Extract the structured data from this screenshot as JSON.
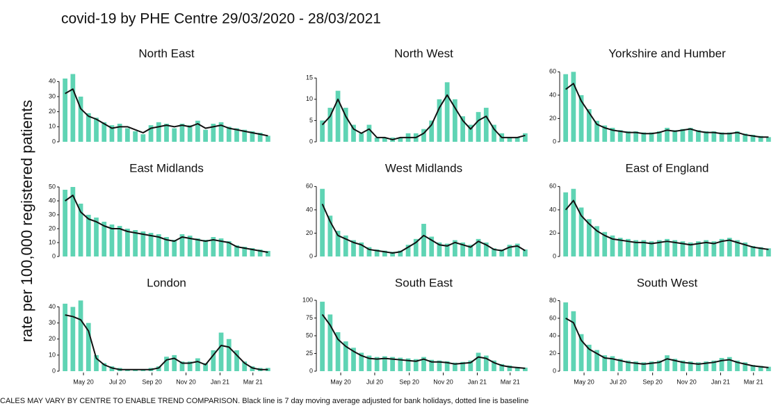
{
  "title": "covid-19 by PHE Centre 29/03/2020 - 28/03/2021",
  "y_label": "rate per 100,000 registered patients",
  "note": "CALES MAY VARY BY CENTRE TO ENABLE TREND COMPARISON. Black line is 7 day moving average adjusted for bank holidays, dotted line is baseline",
  "chart_data": [
    {
      "type": "bar",
      "title": "North East",
      "x": [
        0,
        14,
        28,
        42,
        56,
        70,
        84,
        98,
        112,
        126,
        140,
        154,
        168,
        182,
        196,
        210,
        224,
        238,
        252,
        266,
        280,
        294,
        308,
        322,
        336,
        350,
        364
      ],
      "xlim": [
        -7,
        371
      ],
      "ylim": [
        0,
        48
      ],
      "yticks": [
        0,
        10,
        20,
        30,
        40
      ],
      "series": [
        {
          "type": "bar",
          "color": "#5fd4b4",
          "values": [
            42,
            45,
            30,
            19,
            16,
            13,
            11,
            12,
            9,
            7,
            5,
            11,
            13,
            12,
            9,
            12,
            11,
            14,
            8,
            12,
            13,
            10,
            9,
            8,
            7,
            6,
            4
          ]
        },
        {
          "type": "line",
          "color": "#111111",
          "values": [
            32,
            35,
            22,
            17,
            15,
            12,
            9,
            10,
            10,
            8,
            6,
            9,
            10,
            11,
            10,
            11,
            10,
            12,
            9,
            10,
            11,
            9,
            8,
            7,
            6,
            5,
            4
          ]
        }
      ]
    },
    {
      "type": "bar",
      "title": "North West",
      "x": [
        0,
        14,
        28,
        42,
        56,
        70,
        84,
        98,
        112,
        126,
        140,
        154,
        168,
        182,
        196,
        210,
        224,
        238,
        252,
        266,
        280,
        294,
        308,
        322,
        336,
        350,
        364
      ],
      "xlim": [
        -7,
        371
      ],
      "ylim": [
        0,
        17
      ],
      "yticks": [
        0,
        5,
        10,
        15
      ],
      "series": [
        {
          "type": "bar",
          "color": "#5fd4b4",
          "values": [
            5,
            8,
            12,
            8,
            4,
            2,
            4,
            1,
            1,
            1,
            1,
            2,
            2,
            3,
            5,
            10,
            14,
            10,
            6,
            4,
            7,
            8,
            4,
            2,
            1,
            1,
            2
          ]
        },
        {
          "type": "line",
          "color": "#111111",
          "values": [
            4,
            6,
            10,
            6,
            3,
            2,
            3,
            1,
            1,
            0.5,
            1,
            1,
            1,
            2,
            4,
            8,
            11,
            8,
            5,
            3,
            5,
            6,
            3,
            1,
            1,
            1,
            1.5
          ]
        }
      ]
    },
    {
      "type": "bar",
      "title": "Yorkshire and Humber",
      "x": [
        0,
        14,
        28,
        42,
        56,
        70,
        84,
        98,
        112,
        126,
        140,
        154,
        168,
        182,
        196,
        210,
        224,
        238,
        252,
        266,
        280,
        294,
        308,
        322,
        336,
        350,
        364
      ],
      "xlim": [
        -7,
        371
      ],
      "ylim": [
        0,
        62
      ],
      "yticks": [
        0,
        20,
        40,
        60
      ],
      "series": [
        {
          "type": "bar",
          "color": "#5fd4b4",
          "values": [
            58,
            60,
            40,
            28,
            18,
            14,
            12,
            10,
            9,
            9,
            8,
            8,
            9,
            12,
            10,
            11,
            12,
            10,
            9,
            9,
            8,
            8,
            9,
            7,
            6,
            5,
            4
          ]
        },
        {
          "type": "line",
          "color": "#111111",
          "values": [
            45,
            50,
            35,
            25,
            15,
            12,
            10,
            9,
            8,
            8,
            7,
            7,
            8,
            10,
            9,
            10,
            11,
            9,
            8,
            8,
            7,
            7,
            8,
            6,
            5,
            4,
            4
          ]
        }
      ]
    },
    {
      "type": "bar",
      "title": "East Midlands",
      "x": [
        0,
        14,
        28,
        42,
        56,
        70,
        84,
        98,
        112,
        126,
        140,
        154,
        168,
        182,
        196,
        210,
        224,
        238,
        252,
        266,
        280,
        294,
        308,
        322,
        336,
        350,
        364
      ],
      "xlim": [
        -7,
        371
      ],
      "ylim": [
        0,
        52
      ],
      "yticks": [
        0,
        10,
        20,
        30,
        40,
        50
      ],
      "series": [
        {
          "type": "bar",
          "color": "#5fd4b4",
          "values": [
            48,
            50,
            38,
            30,
            28,
            25,
            23,
            22,
            20,
            19,
            18,
            17,
            16,
            14,
            12,
            16,
            15,
            13,
            12,
            14,
            13,
            11,
            8,
            7,
            6,
            5,
            4
          ]
        },
        {
          "type": "line",
          "color": "#111111",
          "values": [
            40,
            44,
            32,
            27,
            25,
            22,
            20,
            20,
            18,
            17,
            16,
            15,
            14,
            12,
            11,
            14,
            13,
            12,
            11,
            12,
            11,
            10,
            7,
            6,
            5,
            4,
            3
          ]
        }
      ]
    },
    {
      "type": "bar",
      "title": "West Midlands",
      "x": [
        0,
        14,
        28,
        42,
        56,
        70,
        84,
        98,
        112,
        126,
        140,
        154,
        168,
        182,
        196,
        210,
        224,
        238,
        252,
        266,
        280,
        294,
        308,
        322,
        336,
        350,
        364
      ],
      "xlim": [
        -7,
        371
      ],
      "ylim": [
        0,
        62
      ],
      "yticks": [
        0,
        20,
        40,
        60
      ],
      "series": [
        {
          "type": "bar",
          "color": "#5fd4b4",
          "values": [
            58,
            35,
            22,
            18,
            14,
            12,
            8,
            6,
            5,
            4,
            5,
            10,
            15,
            28,
            17,
            12,
            11,
            14,
            12,
            10,
            15,
            12,
            7,
            6,
            10,
            11,
            6
          ]
        },
        {
          "type": "line",
          "color": "#111111",
          "values": [
            45,
            30,
            18,
            15,
            12,
            10,
            6,
            5,
            4,
            3,
            4,
            8,
            12,
            18,
            14,
            10,
            9,
            12,
            10,
            8,
            13,
            10,
            6,
            5,
            8,
            9,
            5
          ]
        }
      ]
    },
    {
      "type": "bar",
      "title": "East of England",
      "x": [
        0,
        14,
        28,
        42,
        56,
        70,
        84,
        98,
        112,
        126,
        140,
        154,
        168,
        182,
        196,
        210,
        224,
        238,
        252,
        266,
        280,
        294,
        308,
        322,
        336,
        350,
        364
      ],
      "xlim": [
        -7,
        371
      ],
      "ylim": [
        0,
        62
      ],
      "yticks": [
        0,
        20,
        40,
        60
      ],
      "series": [
        {
          "type": "bar",
          "color": "#5fd4b4",
          "values": [
            55,
            58,
            42,
            32,
            26,
            21,
            18,
            16,
            15,
            14,
            14,
            13,
            14,
            15,
            14,
            13,
            12,
            13,
            14,
            13,
            15,
            16,
            14,
            12,
            9,
            8,
            7
          ]
        },
        {
          "type": "line",
          "color": "#111111",
          "values": [
            40,
            48,
            35,
            28,
            22,
            18,
            15,
            14,
            13,
            12,
            12,
            11,
            12,
            13,
            12,
            11,
            10,
            11,
            12,
            11,
            13,
            14,
            12,
            10,
            8,
            7,
            6
          ]
        }
      ]
    },
    {
      "type": "bar",
      "title": "London",
      "x": [
        0,
        14,
        28,
        42,
        56,
        70,
        84,
        98,
        112,
        126,
        140,
        154,
        168,
        182,
        196,
        210,
        224,
        238,
        252,
        266,
        280,
        294,
        308,
        322,
        336,
        350,
        364
      ],
      "xlim": [
        -7,
        371
      ],
      "ylim": [
        0,
        45
      ],
      "yticks": [
        0,
        10,
        20,
        30,
        40
      ],
      "xticks": [
        {
          "value": 33,
          "label": "May 20"
        },
        {
          "value": 94,
          "label": "Jul 20"
        },
        {
          "value": 156,
          "label": "Sep 20"
        },
        {
          "value": 217,
          "label": "Nov 20"
        },
        {
          "value": 278,
          "label": "Jan 21"
        },
        {
          "value": 337,
          "label": "Mar 21"
        }
      ],
      "series": [
        {
          "type": "bar",
          "color": "#5fd4b4",
          "values": [
            42,
            40,
            44,
            30,
            10,
            5,
            3,
            2,
            1,
            1,
            1,
            2,
            3,
            9,
            10,
            6,
            6,
            8,
            5,
            13,
            24,
            20,
            13,
            6,
            3,
            2,
            2
          ]
        },
        {
          "type": "line",
          "color": "#111111",
          "values": [
            35,
            34,
            32,
            25,
            8,
            4,
            2,
            1,
            1,
            1,
            1,
            1,
            2,
            7,
            8,
            5,
            5,
            6,
            4,
            10,
            16,
            15,
            10,
            5,
            2,
            1,
            1
          ]
        }
      ]
    },
    {
      "type": "bar",
      "title": "South East",
      "x": [
        0,
        14,
        28,
        42,
        56,
        70,
        84,
        98,
        112,
        126,
        140,
        154,
        168,
        182,
        196,
        210,
        224,
        238,
        252,
        266,
        280,
        294,
        308,
        322,
        336,
        350,
        364
      ],
      "xlim": [
        -7,
        371
      ],
      "ylim": [
        0,
        102
      ],
      "yticks": [
        0,
        25,
        50,
        75,
        100
      ],
      "xticks": [
        {
          "value": 33,
          "label": "May 20"
        },
        {
          "value": 94,
          "label": "Jul 20"
        },
        {
          "value": 156,
          "label": "Sep 20"
        },
        {
          "value": 217,
          "label": "Nov 20"
        },
        {
          "value": 278,
          "label": "Jan 21"
        },
        {
          "value": 337,
          "label": "Mar 21"
        }
      ],
      "series": [
        {
          "type": "bar",
          "color": "#5fd4b4",
          "values": [
            98,
            80,
            55,
            42,
            33,
            26,
            22,
            20,
            21,
            20,
            19,
            18,
            17,
            20,
            16,
            15,
            14,
            12,
            13,
            15,
            26,
            22,
            15,
            10,
            8,
            6,
            5
          ]
        },
        {
          "type": "line",
          "color": "#111111",
          "values": [
            80,
            65,
            45,
            35,
            28,
            22,
            18,
            17,
            18,
            17,
            16,
            15,
            14,
            17,
            13,
            13,
            12,
            10,
            11,
            12,
            20,
            18,
            12,
            8,
            6,
            5,
            4
          ]
        }
      ]
    },
    {
      "type": "bar",
      "title": "South West",
      "x": [
        0,
        14,
        28,
        42,
        56,
        70,
        84,
        98,
        112,
        126,
        140,
        154,
        168,
        182,
        196,
        210,
        224,
        238,
        252,
        266,
        280,
        294,
        308,
        322,
        336,
        350,
        364
      ],
      "xlim": [
        -7,
        371
      ],
      "ylim": [
        0,
        82
      ],
      "yticks": [
        0,
        20,
        40,
        60,
        80
      ],
      "xticks": [
        {
          "value": 33,
          "label": "May 20"
        },
        {
          "value": 94,
          "label": "Jul 20"
        },
        {
          "value": 156,
          "label": "Sep 20"
        },
        {
          "value": 217,
          "label": "Nov 20"
        },
        {
          "value": 278,
          "label": "Jan 21"
        },
        {
          "value": 337,
          "label": "Mar 21"
        }
      ],
      "series": [
        {
          "type": "bar",
          "color": "#5fd4b4",
          "values": [
            78,
            68,
            42,
            30,
            24,
            18,
            17,
            14,
            12,
            11,
            10,
            11,
            12,
            18,
            14,
            12,
            11,
            10,
            11,
            12,
            15,
            16,
            12,
            10,
            7,
            6,
            5
          ]
        },
        {
          "type": "line",
          "color": "#111111",
          "values": [
            60,
            55,
            35,
            25,
            20,
            15,
            14,
            12,
            10,
            9,
            8,
            9,
            10,
            14,
            12,
            10,
            9,
            8,
            9,
            10,
            12,
            13,
            10,
            8,
            6,
            5,
            4
          ]
        }
      ]
    }
  ]
}
